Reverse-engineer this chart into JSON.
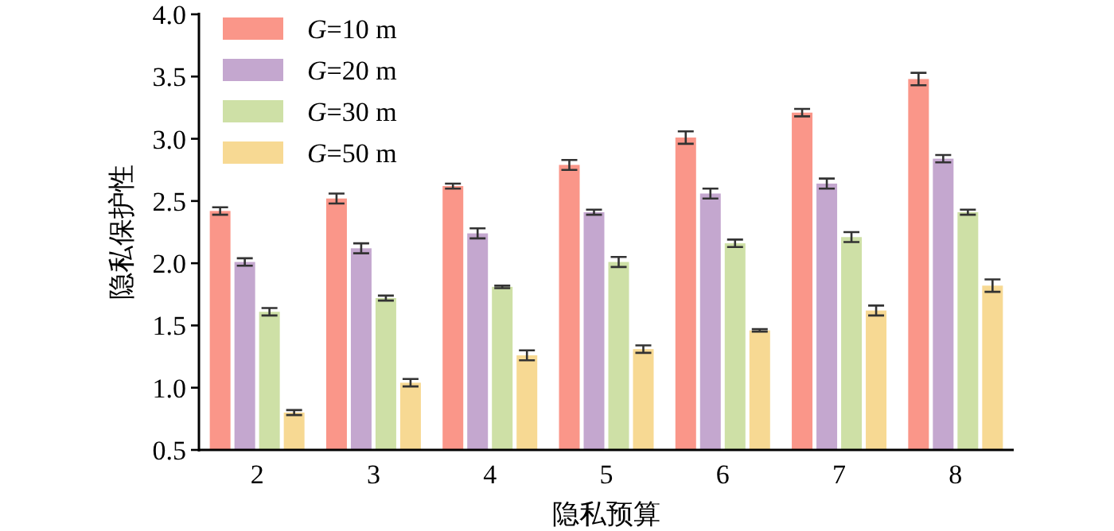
{
  "chart_data": {
    "type": "bar",
    "xlabel": "隐私预算",
    "ylabel": "隐私保护性",
    "categories": [
      "2",
      "3",
      "4",
      "5",
      "6",
      "7",
      "8"
    ],
    "ylim": [
      0.5,
      4.0
    ],
    "yticks": [
      0.5,
      {
        "value": 1,
        "label": "1.0"
      },
      1.5,
      {
        "value": 2,
        "label": "2.0"
      },
      2.5,
      {
        "value": 3,
        "label": "3.0"
      },
      3.5,
      {
        "value": 4,
        "label": "4.0"
      }
    ],
    "legend": "top left",
    "grid": false,
    "series": [
      {
        "name": "*G*=10 m",
        "color": "#fa9689",
        "values": [
          2.42,
          2.52,
          2.62,
          2.79,
          3.01,
          3.21,
          3.48
        ],
        "errors": [
          0.03,
          0.04,
          0.02,
          0.04,
          0.05,
          0.03,
          0.05
        ]
      },
      {
        "name": "*G*=20 m",
        "color": "#c4a7cf",
        "values": [
          2.01,
          2.12,
          2.24,
          2.41,
          2.56,
          2.64,
          2.84
        ],
        "errors": [
          0.03,
          0.04,
          0.04,
          0.02,
          0.04,
          0.04,
          0.03
        ]
      },
      {
        "name": "*G*=30 m",
        "color": "#cee0a6",
        "values": [
          1.61,
          1.72,
          1.81,
          2.01,
          2.16,
          2.21,
          2.41
        ],
        "errors": [
          0.03,
          0.02,
          0.01,
          0.04,
          0.03,
          0.04,
          0.02
        ]
      },
      {
        "name": "*G*=50 m",
        "color": "#f7d993",
        "values": [
          0.8,
          1.04,
          1.26,
          1.31,
          1.46,
          1.62,
          1.82
        ],
        "errors": [
          0.02,
          0.03,
          0.04,
          0.03,
          0.01,
          0.04,
          0.05
        ]
      }
    ]
  }
}
